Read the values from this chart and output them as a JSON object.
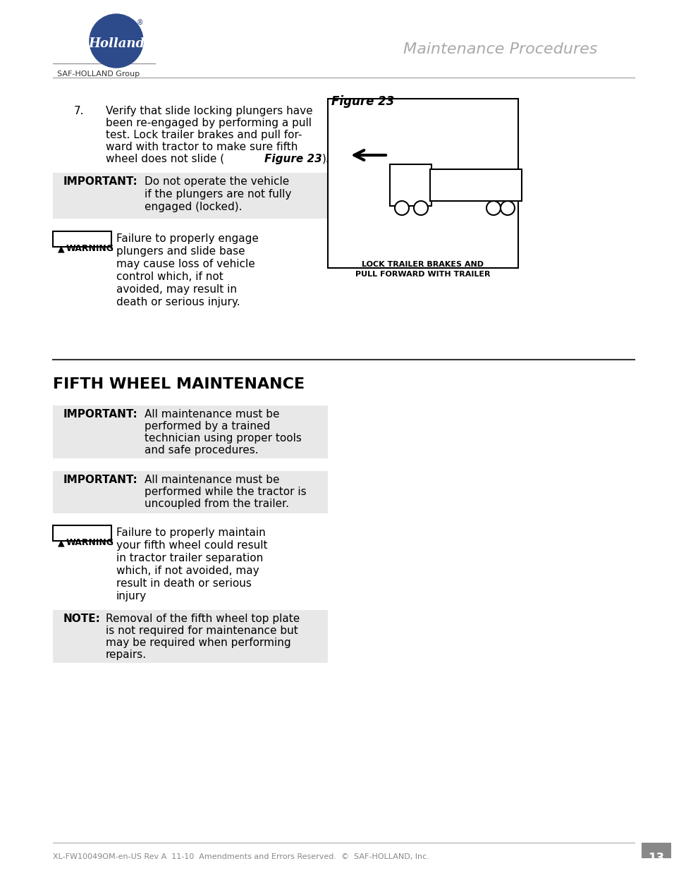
{
  "page_bg": "#ffffff",
  "header_line_color": "#888888",
  "header_title": "Maintenance Procedures",
  "header_title_color": "#aaaaaa",
  "header_logo_circle_color": "#2d4a8a",
  "header_subtext": "SAF-HOLLAND Group",
  "section_divider_color": "#333333",
  "step7_number": "7.",
  "step7_text": "Verify that slide locking plungers have\nbeen re-engaged by performing a pull\ntest. Lock trailer brakes and pull for-\nward with tractor to make sure fifth\nwheel does not slide (⁠Figure 23⁠).",
  "important1_label": "IMPORTANT:",
  "important1_text": "Do not operate the vehicle\nif the plungers are not fully\nengaged (locked).",
  "warning1_text": "Failure to properly engage\nplungers and slide base\nmay cause loss of vehicle\ncontrol which, if not\navoided, may result in\ndeath or serious injury.",
  "figure23_label": "Figure 23",
  "figure23_caption": "LOCK TRAILER BRAKES AND\nPULL FORWARD WITH TRAILER",
  "section_title": "FIFTH WHEEL MAINTENANCE",
  "important2_label": "IMPORTANT:",
  "important2_text": "All maintenance must be\nperformed by a trained\ntechnician using proper tools\nand safe procedures.",
  "important3_label": "IMPORTANT:",
  "important3_text": "All maintenance must be\nperformed while the tractor is\nuncoupled from the trailer.",
  "warning2_text": "Failure to properly maintain\nyour fifth wheel could result\nin tractor trailer separation\nwhich, if not avoided, may\nresult in death or serious\ninjury",
  "note_label": "NOTE:",
  "note_text": "Removal of the fifth wheel top plate\nis not required for maintenance but\nmay be required when performing\nrepairs.",
  "footer_text": "XL-FW10049OM-en-US Rev A  11-10  Amendments and Errors Reserved.  ©  SAF-HOLLAND, Inc.",
  "page_number": "13",
  "box_bg": "#e8e8e8",
  "warning_box_color": "#ffffff",
  "text_color": "#000000",
  "body_font_size": 10.5,
  "label_font_size": 10.5
}
